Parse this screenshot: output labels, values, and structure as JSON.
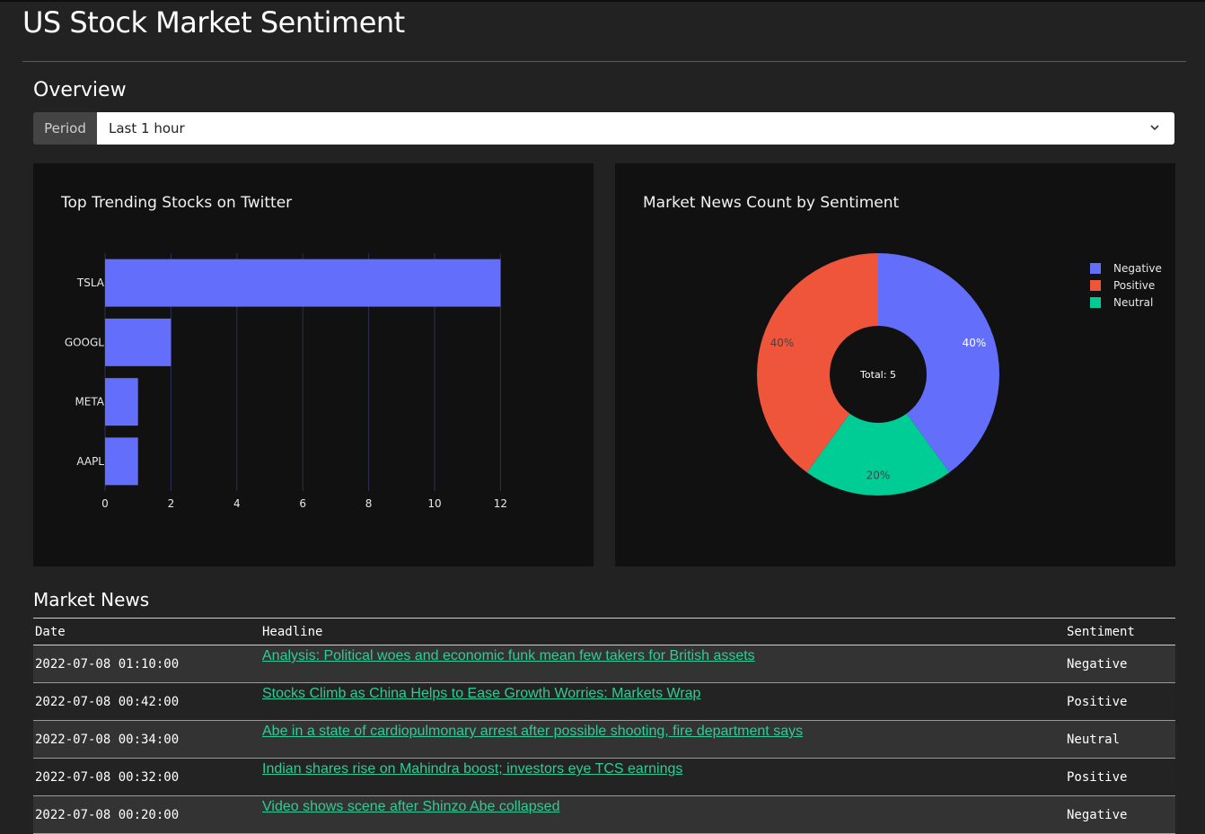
{
  "page": {
    "title": "US Stock Market Sentiment"
  },
  "overview": {
    "title": "Overview",
    "period_label": "Period",
    "period_value": "Last 1 hour"
  },
  "bar_chart": {
    "title": "Top Trending Stocks on Twitter"
  },
  "pie_chart": {
    "title": "Market News Count by Sentiment",
    "center_text": "Total: 5"
  },
  "chart_data": [
    {
      "type": "bar",
      "orientation": "horizontal",
      "title": "Top Trending Stocks on Twitter",
      "categories": [
        "TSLA",
        "GOOGL",
        "META",
        "AAPL"
      ],
      "values": [
        12,
        2,
        1,
        1
      ],
      "xlim": [
        0,
        12.8
      ],
      "xticks": [
        0,
        2,
        4,
        6,
        8,
        10,
        12
      ],
      "color": "#636efa",
      "grid": true
    },
    {
      "type": "pie",
      "title": "Market News Count by Sentiment",
      "hole": true,
      "center_text": "Total: 5",
      "labels": [
        "Negative",
        "Positive",
        "Neutral"
      ],
      "values": [
        2,
        2,
        1
      ],
      "percent_labels": [
        "40%",
        "40%",
        "20%"
      ],
      "colors": [
        "#636efa",
        "#ef553b",
        "#00cc96"
      ],
      "legend": "top-right"
    }
  ],
  "market_news": {
    "title": "Market News",
    "columns": [
      "Date",
      "Headline",
      "Sentiment"
    ],
    "rows": [
      {
        "date": "2022-07-08 01:10:00",
        "headline": "Analysis: Political woes and economic funk mean few takers for British assets",
        "sentiment": "Negative"
      },
      {
        "date": "2022-07-08 00:42:00",
        "headline": "Stocks Climb as China Helps to Ease Growth Worries: Markets Wrap",
        "sentiment": "Positive"
      },
      {
        "date": "2022-07-08 00:34:00",
        "headline": "Abe in a state of cardiopulmonary arrest after possible shooting, fire department says",
        "sentiment": "Neutral"
      },
      {
        "date": "2022-07-08 00:32:00",
        "headline": "Indian shares rise on Mahindra boost; investors eye TCS earnings",
        "sentiment": "Positive"
      },
      {
        "date": "2022-07-08 00:20:00",
        "headline": "Video shows scene after Shinzo Abe collapsed",
        "sentiment": "Negative"
      }
    ]
  },
  "icons": {
    "period_dropdown": "chevron-down-icon"
  },
  "colors": {
    "background": "#222222",
    "panel": "#111111",
    "link": "#2ecc97"
  }
}
